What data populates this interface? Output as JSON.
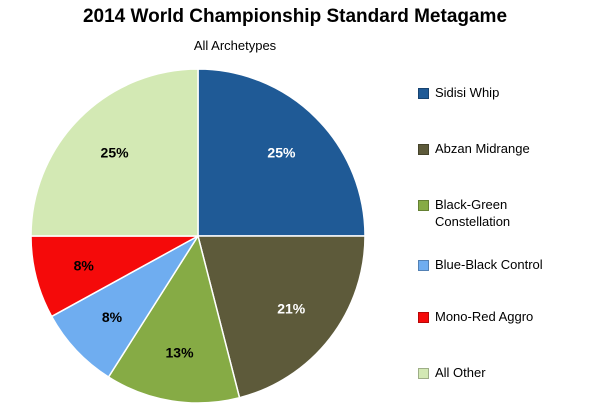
{
  "colors": {
    "Sidisi Whip": "#1f5a96",
    "Abzan Midrange": "#5d5a3a",
    "Black-Green Constellation": "#86ab45",
    "Blue-Black Control": "#6fadf0",
    "Mono-Red Aggro": "#f50a0a",
    "All Other": "#d3e9b4"
  },
  "chart_data": {
    "type": "pie",
    "title": "2014 World Championship Standard Metagame",
    "subtitle": "All Archetypes",
    "legend_position": "right",
    "slices": [
      {
        "label": "Sidisi Whip",
        "value": 25,
        "display": "25%"
      },
      {
        "label": "Abzan Midrange",
        "value": 21,
        "display": "21%"
      },
      {
        "label": "Black-Green Constellation",
        "value": 13,
        "display": "13%"
      },
      {
        "label": "Blue-Black Control",
        "value": 8,
        "display": "8%"
      },
      {
        "label": "Mono-Red Aggro",
        "value": 8,
        "display": "8%"
      },
      {
        "label": "All Other",
        "value": 25,
        "display": "25%"
      }
    ]
  }
}
